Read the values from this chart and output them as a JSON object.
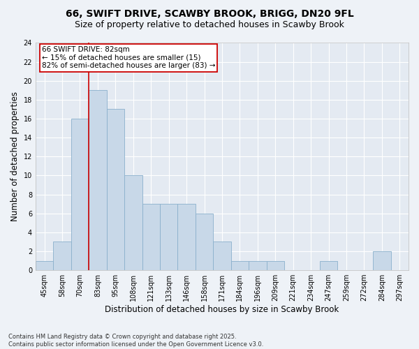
{
  "title": "66, SWIFT DRIVE, SCAWBY BROOK, BRIGG, DN20 9FL",
  "subtitle": "Size of property relative to detached houses in Scawby Brook",
  "xlabel": "Distribution of detached houses by size in Scawby Brook",
  "ylabel": "Number of detached properties",
  "categories": [
    "45sqm",
    "58sqm",
    "70sqm",
    "83sqm",
    "95sqm",
    "108sqm",
    "121sqm",
    "133sqm",
    "146sqm",
    "158sqm",
    "171sqm",
    "184sqm",
    "196sqm",
    "209sqm",
    "221sqm",
    "234sqm",
    "247sqm",
    "259sqm",
    "272sqm",
    "284sqm",
    "297sqm"
  ],
  "values": [
    1,
    3,
    16,
    19,
    17,
    10,
    7,
    7,
    7,
    6,
    3,
    1,
    1,
    1,
    0,
    0,
    1,
    0,
    0,
    2,
    0
  ],
  "bar_color": "#c8d8e8",
  "bar_edgecolor": "#8ab0cc",
  "vline_x_index": 3,
  "vline_color": "#cc0000",
  "annotation_text": "66 SWIFT DRIVE: 82sqm\n← 15% of detached houses are smaller (15)\n82% of semi-detached houses are larger (83) →",
  "annotation_box_edgecolor": "#cc0000",
  "annotation_facecolor": "#ffffff",
  "ylim": [
    0,
    24
  ],
  "yticks": [
    0,
    2,
    4,
    6,
    8,
    10,
    12,
    14,
    16,
    18,
    20,
    22,
    24
  ],
  "footnote": "Contains HM Land Registry data © Crown copyright and database right 2025.\nContains public sector information licensed under the Open Government Licence v3.0.",
  "bg_color": "#eef2f7",
  "plot_bg_color": "#e4eaf2",
  "grid_color": "#ffffff",
  "title_fontsize": 10,
  "subtitle_fontsize": 9,
  "axis_label_fontsize": 8.5,
  "tick_fontsize": 7,
  "annotation_fontsize": 7.5,
  "footnote_fontsize": 6
}
